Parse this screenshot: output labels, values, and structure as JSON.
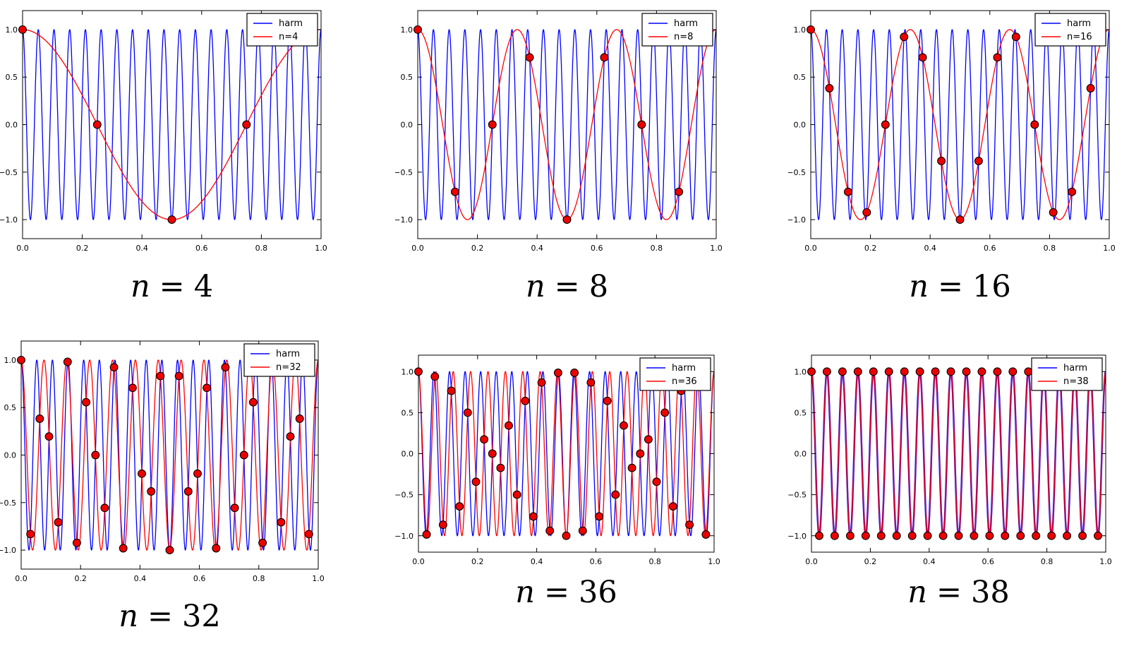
{
  "page": {
    "background": "#ffffff"
  },
  "style": {
    "harm_color": "#0000ff",
    "alias_color": "#ff0000",
    "marker_face": "#ee0000",
    "marker_edge": "#000000",
    "axes_color": "#000000",
    "text_color": "#000000",
    "legend_bg": "#ffffff",
    "legend_border": "#000000"
  },
  "chart_data": [
    {
      "type": "line",
      "caption": {
        "lhs": "n",
        "eq": "=",
        "rhs": "4"
      },
      "xlim": [
        0,
        1
      ],
      "ylim": [
        -1.2,
        1.2
      ],
      "grid": false,
      "x_ticks": [
        "0.0",
        "0.2",
        "0.4",
        "0.6",
        "0.8",
        "1.0"
      ],
      "x_tick_values": [
        0,
        0.2,
        0.4,
        0.6,
        0.8,
        1
      ],
      "y_ticks": [
        "1.0",
        "0.5",
        "0.0",
        "−0.5",
        "−1.0"
      ],
      "y_tick_values": [
        1,
        0.5,
        0,
        -0.5,
        -1
      ],
      "legend": {
        "position": "upper right",
        "entries": [
          "harm",
          "n=4"
        ]
      },
      "series": [
        {
          "name": "harm",
          "kind": "cosine",
          "frequency": 19,
          "amplitude": 1,
          "color": "#0000ff",
          "linewidth": 1.3
        },
        {
          "name": "n=4",
          "kind": "cosine",
          "frequency": 1,
          "amplitude": 1,
          "color": "#ff0000",
          "linewidth": 1.3
        }
      ],
      "samples": {
        "n": 4,
        "marker": "circle",
        "x": [
          0,
          0.25,
          0.5,
          0.75
        ],
        "y": [
          1,
          0,
          -1,
          0
        ]
      }
    },
    {
      "type": "line",
      "caption": {
        "lhs": "n",
        "eq": "=",
        "rhs": "8"
      },
      "xlim": [
        0,
        1
      ],
      "ylim": [
        -1.2,
        1.2
      ],
      "grid": false,
      "x_ticks": [
        "0.0",
        "0.2",
        "0.4",
        "0.6",
        "0.8",
        "1.0"
      ],
      "x_tick_values": [
        0,
        0.2,
        0.4,
        0.6,
        0.8,
        1
      ],
      "y_ticks": [
        "1.0",
        "0.5",
        "0.0",
        "−0.5",
        "−1.0"
      ],
      "y_tick_values": [
        1,
        0.5,
        0,
        -0.5,
        -1
      ],
      "legend": {
        "position": "upper right",
        "entries": [
          "harm",
          "n=8"
        ]
      },
      "series": [
        {
          "name": "harm",
          "kind": "cosine",
          "frequency": 19,
          "amplitude": 1,
          "color": "#0000ff",
          "linewidth": 1.3
        },
        {
          "name": "n=8",
          "kind": "cosine",
          "frequency": 3,
          "amplitude": 1,
          "color": "#ff0000",
          "linewidth": 1.3
        }
      ],
      "samples": {
        "n": 8,
        "marker": "circle",
        "x": [
          0,
          0.125,
          0.25,
          0.375,
          0.5,
          0.625,
          0.75,
          0.875
        ],
        "y": [
          1,
          -0.7071,
          0,
          0.7071,
          -1,
          0.7071,
          0,
          -0.7071
        ]
      }
    },
    {
      "type": "line",
      "caption": {
        "lhs": "n",
        "eq": "=",
        "rhs": "16"
      },
      "xlim": [
        0,
        1
      ],
      "ylim": [
        -1.2,
        1.2
      ],
      "grid": false,
      "x_ticks": [
        "0.0",
        "0.2",
        "0.4",
        "0.6",
        "0.8",
        "1.0"
      ],
      "x_tick_values": [
        0,
        0.2,
        0.4,
        0.6,
        0.8,
        1
      ],
      "y_ticks": [
        "1.0",
        "0.5",
        "0.0",
        "−0.5",
        "−1.0"
      ],
      "y_tick_values": [
        1,
        0.5,
        0,
        -0.5,
        -1
      ],
      "legend": {
        "position": "upper right",
        "entries": [
          "harm",
          "n=16"
        ]
      },
      "series": [
        {
          "name": "harm",
          "kind": "cosine",
          "frequency": 19,
          "amplitude": 1,
          "color": "#0000ff",
          "linewidth": 1.3
        },
        {
          "name": "n=16",
          "kind": "cosine",
          "frequency": 3,
          "amplitude": 1,
          "color": "#ff0000",
          "linewidth": 1.3
        }
      ],
      "samples": {
        "n": 16,
        "marker": "circle",
        "x": [
          0,
          0.0625,
          0.125,
          0.1875,
          0.25,
          0.3125,
          0.375,
          0.4375,
          0.5,
          0.5625,
          0.625,
          0.6875,
          0.75,
          0.8125,
          0.875,
          0.9375
        ],
        "y": [
          1,
          0.3827,
          -0.7071,
          -0.9239,
          0,
          0.9239,
          0.7071,
          -0.3827,
          -1,
          -0.3827,
          0.7071,
          0.9239,
          0,
          -0.9239,
          -0.7071,
          0.3827
        ]
      }
    },
    {
      "type": "line",
      "caption": {
        "lhs": "n",
        "eq": "=",
        "rhs": "32"
      },
      "xlim": [
        0,
        1
      ],
      "ylim": [
        -1.2,
        1.2
      ],
      "grid": false,
      "x_ticks": [
        "0.0",
        "0.2",
        "0.4",
        "0.6",
        "0.8",
        "1.0"
      ],
      "x_tick_values": [
        0,
        0.2,
        0.4,
        0.6,
        0.8,
        1
      ],
      "y_ticks": [
        "1.0",
        "0.5",
        "0.0",
        "−0.5",
        "−1.0"
      ],
      "y_tick_values": [
        1,
        0.5,
        0,
        -0.5,
        -1
      ],
      "legend": {
        "position": "upper right",
        "entries": [
          "harm",
          "n=32"
        ]
      },
      "series": [
        {
          "name": "harm",
          "kind": "cosine",
          "frequency": 19,
          "amplitude": 1,
          "color": "#0000ff",
          "linewidth": 1.3
        },
        {
          "name": "n=32",
          "kind": "cosine",
          "frequency": 13,
          "amplitude": 1,
          "color": "#ff0000",
          "linewidth": 1.3
        }
      ],
      "samples": {
        "n": 32,
        "marker": "circle",
        "x": [
          0,
          0.03125,
          0.0625,
          0.09375,
          0.125,
          0.15625,
          0.1875,
          0.21875,
          0.25,
          0.28125,
          0.3125,
          0.34375,
          0.375,
          0.40625,
          0.4375,
          0.46875,
          0.5,
          0.53125,
          0.5625,
          0.59375,
          0.625,
          0.65625,
          0.6875,
          0.71875,
          0.75,
          0.78125,
          0.8125,
          0.84375,
          0.875,
          0.90625,
          0.9375,
          0.96875
        ],
        "y": [
          1,
          -0.8315,
          0.3827,
          0.1951,
          -0.7071,
          0.9808,
          -0.9239,
          0.5556,
          0,
          -0.5556,
          0.9239,
          -0.9808,
          0.7071,
          -0.1951,
          -0.3827,
          0.8315,
          -1,
          0.8315,
          -0.3827,
          -0.1951,
          0.7071,
          -0.9808,
          0.9239,
          -0.5556,
          0,
          0.5556,
          -0.9239,
          0.9808,
          -0.7071,
          0.1951,
          0.3827,
          -0.8315
        ]
      }
    },
    {
      "type": "line",
      "caption": {
        "lhs": "n",
        "eq": "=",
        "rhs": "36"
      },
      "xlim": [
        0,
        1
      ],
      "ylim": [
        -1.2,
        1.2
      ],
      "grid": false,
      "x_ticks": [
        "0.0",
        "0.2",
        "0.4",
        "0.6",
        "0.8",
        "1.0"
      ],
      "x_tick_values": [
        0,
        0.2,
        0.4,
        0.6,
        0.8,
        1
      ],
      "y_ticks": [
        "1.0",
        "0.5",
        "0.0",
        "−0.5",
        "−1.0"
      ],
      "y_tick_values": [
        1,
        0.5,
        0,
        -0.5,
        -1
      ],
      "legend": {
        "position": "upper right",
        "entries": [
          "harm",
          "n=36"
        ]
      },
      "series": [
        {
          "name": "harm",
          "kind": "cosine",
          "frequency": 19,
          "amplitude": 1,
          "color": "#0000ff",
          "linewidth": 1.3
        },
        {
          "name": "n=36",
          "kind": "cosine",
          "frequency": 17,
          "amplitude": 1,
          "color": "#ff0000",
          "linewidth": 1.3
        }
      ],
      "samples": {
        "n": 36,
        "marker": "circle",
        "x": [
          0,
          0.02778,
          0.05556,
          0.08333,
          0.11111,
          0.13889,
          0.16667,
          0.19444,
          0.22222,
          0.25,
          0.27778,
          0.30556,
          0.33333,
          0.36111,
          0.38889,
          0.41667,
          0.44444,
          0.47222,
          0.5,
          0.52778,
          0.55556,
          0.58333,
          0.61111,
          0.63889,
          0.66667,
          0.69444,
          0.72222,
          0.75,
          0.77778,
          0.80556,
          0.83333,
          0.86111,
          0.88889,
          0.91667,
          0.94444,
          0.97222
        ],
        "y": [
          1,
          -0.9848,
          0.9397,
          -0.866,
          0.766,
          -0.6428,
          0.5,
          -0.342,
          0.1736,
          0,
          -0.1736,
          0.342,
          -0.5,
          0.6428,
          -0.766,
          0.866,
          -0.9397,
          0.9848,
          -1,
          0.9848,
          -0.9397,
          0.866,
          -0.766,
          0.6428,
          -0.5,
          0.342,
          -0.1736,
          0,
          0.1736,
          -0.342,
          0.5,
          -0.6428,
          0.766,
          -0.866,
          0.9397,
          -0.9848
        ]
      }
    },
    {
      "type": "line",
      "caption": {
        "lhs": "n",
        "eq": "=",
        "rhs": "38"
      },
      "xlim": [
        0,
        1
      ],
      "ylim": [
        -1.2,
        1.2
      ],
      "grid": false,
      "x_ticks": [
        "0.0",
        "0.2",
        "0.4",
        "0.6",
        "0.8",
        "1.0"
      ],
      "x_tick_values": [
        0,
        0.2,
        0.4,
        0.6,
        0.8,
        1
      ],
      "y_ticks": [
        "1.0",
        "0.5",
        "0.0",
        "−0.5",
        "−1.0"
      ],
      "y_tick_values": [
        1,
        0.5,
        0,
        -0.5,
        -1
      ],
      "legend": {
        "position": "upper right",
        "entries": [
          "harm",
          "n=38"
        ]
      },
      "series": [
        {
          "name": "harm",
          "kind": "cosine",
          "frequency": 19,
          "amplitude": 1,
          "color": "#0000ff",
          "linewidth": 2.4
        },
        {
          "name": "n=38",
          "kind": "cosine",
          "frequency": 19,
          "amplitude": 1,
          "color": "#ff0000",
          "linewidth": 1.4
        }
      ],
      "samples": {
        "n": 38,
        "marker": "circle",
        "x": [
          0,
          0.02632,
          0.05263,
          0.07895,
          0.10526,
          0.13158,
          0.15789,
          0.18421,
          0.21053,
          0.23684,
          0.26316,
          0.28947,
          0.31579,
          0.34211,
          0.36842,
          0.39474,
          0.42105,
          0.44737,
          0.47368,
          0.5,
          0.52632,
          0.55263,
          0.57895,
          0.60526,
          0.63158,
          0.65789,
          0.68421,
          0.71053,
          0.73684,
          0.76316,
          0.78947,
          0.81579,
          0.84211,
          0.86842,
          0.89474,
          0.92105,
          0.94737,
          0.97368
        ],
        "y": [
          1,
          -1,
          1,
          -1,
          1,
          -1,
          1,
          -1,
          1,
          -1,
          1,
          -1,
          1,
          -1,
          1,
          -1,
          1,
          -1,
          1,
          -1,
          1,
          -1,
          1,
          -1,
          1,
          -1,
          1,
          -1,
          1,
          -1,
          1,
          -1,
          1,
          -1,
          1,
          -1,
          1,
          -1
        ]
      }
    }
  ]
}
